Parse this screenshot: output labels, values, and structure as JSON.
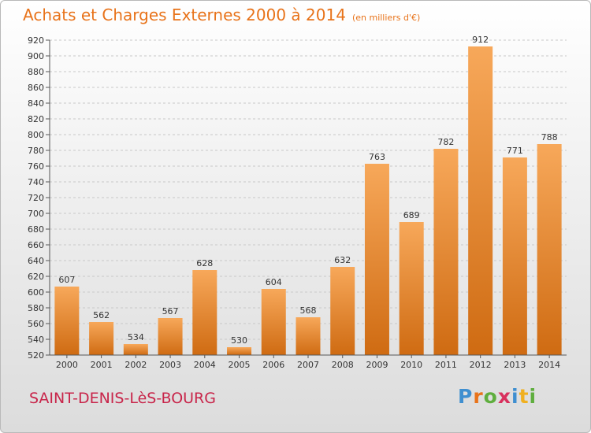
{
  "title": "Achats et Charges Externes 2000 à 2014",
  "unit_note": "(en milliers d'€)",
  "commune": "SAINT-DENIS-LèS-BOURG",
  "logo": {
    "text": "Proxiti",
    "letter_colors": [
      "#3f8fd0",
      "#e8731a",
      "#5fae3e",
      "#d8305d",
      "#3f8fd0",
      "#f0b020",
      "#5fae3e"
    ]
  },
  "colors": {
    "title": "#e8731a",
    "commune": "#c8254a",
    "bar_top": "#f7a85a",
    "bar_bottom": "#cf6b12"
  },
  "chart_data": {
    "type": "bar",
    "categories": [
      "2000",
      "2001",
      "2002",
      "2003",
      "2004",
      "2005",
      "2006",
      "2007",
      "2008",
      "2009",
      "2010",
      "2011",
      "2012",
      "2013",
      "2014"
    ],
    "values": [
      607,
      562,
      534,
      567,
      628,
      530,
      604,
      568,
      632,
      763,
      689,
      782,
      912,
      771,
      788
    ],
    "ylim": [
      520,
      920
    ],
    "yticks": [
      520,
      540,
      560,
      580,
      600,
      620,
      640,
      660,
      680,
      700,
      720,
      740,
      760,
      780,
      800,
      820,
      840,
      860,
      880,
      900,
      920
    ],
    "grid": true,
    "data_labels": true
  }
}
